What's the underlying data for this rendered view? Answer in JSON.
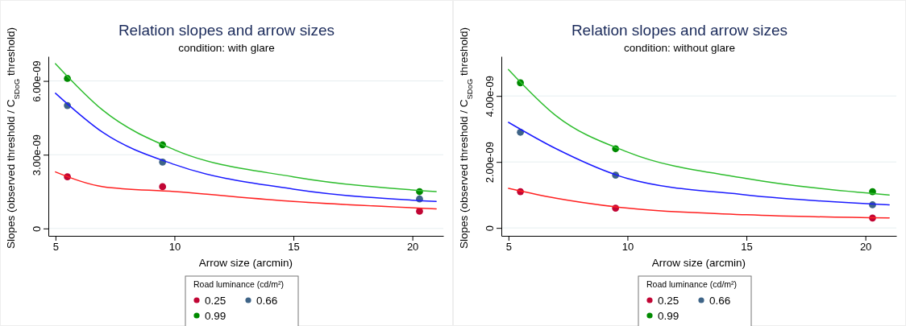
{
  "chart_data": [
    {
      "type": "scatter",
      "title": "Relation slopes and arrow sizes",
      "subtitle": "condition: with glare",
      "xlabel": "Arrow size (arcmin)",
      "ylabel": "Slopes (observed threshold / C$_{SDoG}$ threshold)",
      "legend_title": "Road luminance (cd/m²)",
      "legend": "bottom",
      "grid": "y",
      "xlim": [
        4.7,
        21.3
      ],
      "xticks": [
        5,
        10,
        15,
        20
      ],
      "ylim": [
        -3e-10,
        7e-09
      ],
      "yticks": [
        {
          "value": 0,
          "label": "0"
        },
        {
          "value": 3e-09,
          "label": "3.00e-09"
        },
        {
          "value": 6e-09,
          "label": "6.00e-09"
        }
      ],
      "series": [
        {
          "name": "0.25",
          "marker": "circle",
          "color": "#c10534",
          "x": [
            5.5,
            9.5,
            20.3
          ],
          "values": [
            2.1e-09,
            1.7e-09,
            7e-10
          ]
        },
        {
          "name": "0.66",
          "marker": "circle",
          "color": "#3e6487",
          "x": [
            5.5,
            9.5,
            20.3
          ],
          "values": [
            5e-09,
            2.7e-09,
            1.2e-09
          ]
        },
        {
          "name": "0.99",
          "marker": "circle",
          "color": "#008a00",
          "x": [
            5.5,
            9.5,
            20.3
          ],
          "values": [
            6.1e-09,
            3.4e-09,
            1.5e-09
          ]
        },
        {
          "type": "line",
          "marker": "none",
          "line_style": "solid",
          "color": "#ff2020",
          "x": [
            5,
            7,
            10,
            15,
            21
          ],
          "values": [
            2.3e-09,
            1.7e-09,
            1.5e-09,
            1.1e-09,
            8e-10
          ]
        },
        {
          "type": "line",
          "marker": "none",
          "line_style": "solid",
          "color": "#1a1aff",
          "x": [
            5,
            7,
            10,
            15,
            21
          ],
          "values": [
            5.5e-09,
            3.9e-09,
            2.6e-09,
            1.6e-09,
            1.1e-09
          ]
        },
        {
          "type": "line",
          "marker": "none",
          "line_style": "solid",
          "color": "#2ebd2e",
          "x": [
            5,
            7,
            10,
            15,
            21
          ],
          "values": [
            6.7e-09,
            4.8e-09,
            3.2e-09,
            2.1e-09,
            1.5e-09
          ]
        }
      ]
    },
    {
      "type": "scatter",
      "title": "Relation slopes and arrow sizes",
      "subtitle": "condition: without glare",
      "xlabel": "Arrow size (arcmin)",
      "ylabel": "Slopes (observed threshold / C$_{SDoG}$ threshold)",
      "legend_title": "Road luminance (cd/m²)",
      "legend": "bottom",
      "grid": "y",
      "xlim": [
        4.7,
        21.3
      ],
      "xticks": [
        5,
        10,
        15,
        20
      ],
      "ylim": [
        -2.4e-10,
        5.2e-09
      ],
      "yticks": [
        {
          "value": 0,
          "label": "0"
        },
        {
          "value": 2e-09,
          "label": "2.00e-09"
        },
        {
          "value": 4e-09,
          "label": "4.00e-09"
        }
      ],
      "series": [
        {
          "name": "0.25",
          "marker": "circle",
          "color": "#c10534",
          "x": [
            5.5,
            9.5,
            20.3
          ],
          "values": [
            1.1e-09,
            6e-10,
            3e-10
          ]
        },
        {
          "name": "0.66",
          "marker": "circle",
          "color": "#3e6487",
          "x": [
            5.5,
            9.5,
            20.3
          ],
          "values": [
            2.9e-09,
            1.6e-09,
            7e-10
          ]
        },
        {
          "name": "0.99",
          "marker": "circle",
          "color": "#008a00",
          "x": [
            5.5,
            9.5,
            20.3
          ],
          "values": [
            4.4e-09,
            2.4e-09,
            1.1e-09
          ]
        },
        {
          "type": "line",
          "marker": "none",
          "line_style": "solid",
          "color": "#ff2020",
          "x": [
            5,
            7,
            10,
            15,
            21
          ],
          "values": [
            1.2e-09,
            9e-10,
            6e-10,
            4e-10,
            3e-10
          ]
        },
        {
          "type": "line",
          "marker": "none",
          "line_style": "solid",
          "color": "#1a1aff",
          "x": [
            5,
            7,
            10,
            15,
            21
          ],
          "values": [
            3.2e-09,
            2.4e-09,
            1.5e-09,
            1e-09,
            7e-10
          ]
        },
        {
          "type": "line",
          "marker": "none",
          "line_style": "solid",
          "color": "#2ebd2e",
          "x": [
            5,
            7,
            10,
            15,
            21
          ],
          "values": [
            4.8e-09,
            3.4e-09,
            2.3e-09,
            1.5e-09,
            1e-09
          ]
        }
      ]
    }
  ]
}
